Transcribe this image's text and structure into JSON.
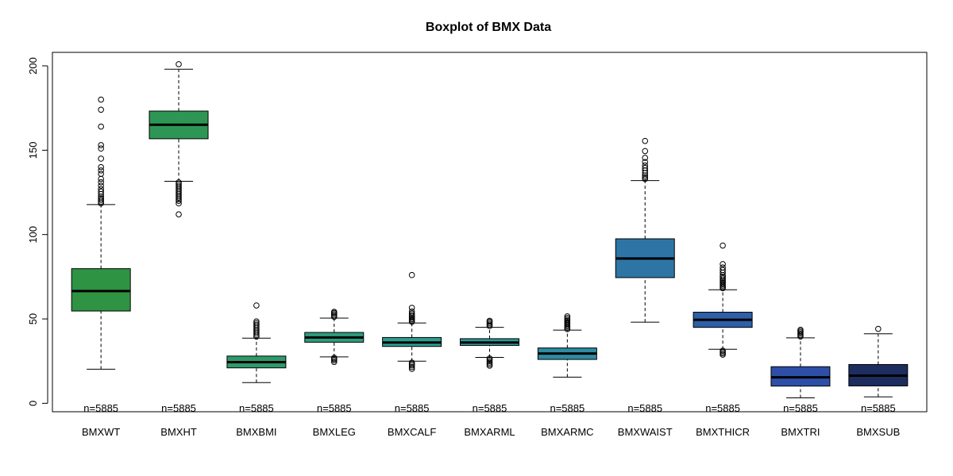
{
  "chart_data": {
    "type": "boxplot",
    "title": "Boxplot of BMX Data",
    "xlabel": "",
    "ylabel": "",
    "ylim": [
      -5,
      208
    ],
    "yticks": [
      0,
      50,
      100,
      150,
      200
    ],
    "grid": false,
    "legend": "none",
    "categories": [
      "BMXWT",
      "BMXHT",
      "BMXBMI",
      "BMXLEG",
      "BMXCALF",
      "BMXARML",
      "BMXARMC",
      "BMXWAIST",
      "BMXTHICR",
      "BMXTRI",
      "BMXSUB"
    ],
    "n_labels": [
      "n=5885",
      "n=5885",
      "n=5885",
      "n=5885",
      "n=5885",
      "n=5885",
      "n=5885",
      "n=5885",
      "n=5885",
      "n=5885",
      "n=5885"
    ],
    "colors": [
      "#2e9343",
      "#2e9654",
      "#2e9a6b",
      "#2e9c7e",
      "#2e9c8e",
      "#2e9898",
      "#2e8ba1",
      "#2e75a6",
      "#2e5fa8",
      "#2e4fa8",
      "#1c2d5e"
    ],
    "boxes": [
      {
        "name": "BMXWT",
        "whisker_low": 20.2,
        "q1": 54.7,
        "median": 66.5,
        "q3": 79.8,
        "whisker_high": 117.8,
        "outliers_high": [
          118.5,
          119.5,
          120.5,
          121.5,
          122.5,
          124,
          125.5,
          127,
          129,
          131,
          133,
          136,
          138,
          140,
          145,
          151,
          153,
          164,
          174,
          180
        ]
      },
      {
        "name": "BMXHT",
        "whisker_low": 131.6,
        "q1": 156.8,
        "median": 165.1,
        "q3": 173.2,
        "whisker_high": 198.0,
        "outliers_low": [
          112,
          118.5,
          120,
          121,
          122,
          123,
          124,
          125,
          126,
          127,
          128,
          129,
          130,
          131
        ],
        "outliers_high": [
          201
        ]
      },
      {
        "name": "BMXBMI",
        "whisker_low": 12.3,
        "q1": 21.0,
        "median": 24.4,
        "q3": 28.0,
        "whisker_high": 38.6,
        "outliers_high": [
          39.5,
          40.5,
          41.5,
          42.5,
          43.5,
          44.5,
          45.5,
          46.5,
          47.5,
          48.5,
          58
        ]
      },
      {
        "name": "BMXLEG",
        "whisker_low": 27.5,
        "q1": 36.2,
        "median": 39.0,
        "q3": 42.0,
        "whisker_high": 50.5,
        "outliers_low": [
          24.5,
          25.5,
          26.3,
          27
        ],
        "outliers_high": [
          51.3,
          52,
          52.8,
          53.6,
          54.2
        ]
      },
      {
        "name": "BMXCALF",
        "whisker_low": 25.0,
        "q1": 33.7,
        "median": 36.0,
        "q3": 39.0,
        "whisker_high": 47.6,
        "outliers_low": [
          20.4,
          21.5,
          22.5,
          23.3,
          24.1
        ],
        "outliers_high": [
          48.3,
          49,
          49.8,
          50.6,
          51.4,
          52.3,
          53.2,
          54.4,
          56.6,
          76
        ]
      },
      {
        "name": "BMXARML",
        "whisker_low": 27.2,
        "q1": 34.3,
        "median": 36.0,
        "q3": 38.3,
        "whisker_high": 45.0,
        "outliers_low": [
          22.3,
          23.2,
          24.1,
          25,
          25.9,
          26.6
        ],
        "outliers_high": [
          45.8,
          46.6,
          47.4,
          48.3,
          48.9
        ]
      },
      {
        "name": "BMXARMC",
        "whisker_low": 15.5,
        "q1": 26.0,
        "median": 29.5,
        "q3": 32.8,
        "whisker_high": 43.4,
        "outliers_high": [
          44,
          44.8,
          45.6,
          46.4,
          47.2,
          48,
          48.8,
          49.6,
          50.5,
          51.5
        ]
      },
      {
        "name": "BMXWAIST",
        "whisker_low": 48.1,
        "q1": 74.5,
        "median": 85.8,
        "q3": 97.5,
        "whisker_high": 132.0,
        "outliers_high": [
          133,
          134,
          135,
          136.5,
          138,
          139.5,
          141,
          143,
          145.5,
          149.5,
          155.5
        ]
      },
      {
        "name": "BMXTHICR",
        "whisker_low": 32.0,
        "q1": 45.0,
        "median": 49.5,
        "q3": 54.0,
        "whisker_high": 67.3,
        "outliers_low": [
          28.8,
          29.6,
          30.4,
          31.2
        ],
        "outliers_high": [
          68.2,
          69,
          69.8,
          70.6,
          71.4,
          72.2,
          73,
          74,
          75,
          76,
          77.5,
          79,
          80.5,
          82.5,
          93.5
        ]
      },
      {
        "name": "BMXTRI",
        "whisker_low": 3.2,
        "q1": 10.2,
        "median": 15.4,
        "q3": 21.7,
        "whisker_high": 38.8,
        "outliers_high": [
          39.6,
          40.4,
          41.2,
          42,
          42.8,
          43.6
        ]
      },
      {
        "name": "BMXSUB",
        "whisker_low": 3.8,
        "q1": 10.3,
        "median": 16.4,
        "q3": 23.0,
        "whisker_high": 41.2,
        "outliers_high": [
          44.1
        ]
      }
    ]
  }
}
